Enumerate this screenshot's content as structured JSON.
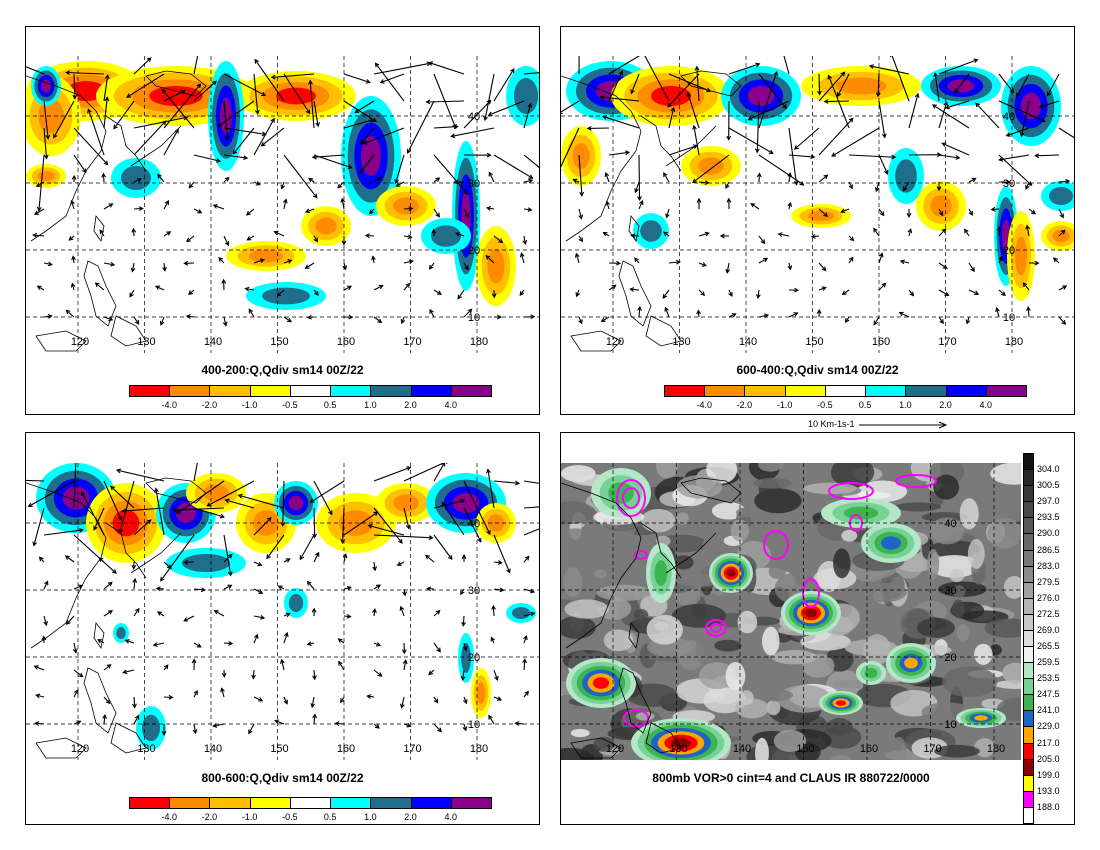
{
  "panels": [
    {
      "title": "400-200:Q,Qdiv sm14 00Z/22"
    },
    {
      "title": "600-400:Q,Qdiv sm14 00Z/22"
    },
    {
      "title": "800-600:Q,Qdiv sm14 00Z/22"
    },
    {
      "title": "800mb VOR>0 cint=4 and CLAUS IR 880722/0000"
    }
  ],
  "lon_labels": [
    "120",
    "130",
    "140",
    "150",
    "160",
    "170",
    "180"
  ],
  "lat_labels": [
    "40",
    "30",
    "20",
    "10"
  ],
  "qdiv_colorbar": {
    "labels": [
      "-4.0",
      "-2.0",
      "-1.0",
      "-0.5",
      "0.5",
      "1.0",
      "2.0",
      "4.0"
    ],
    "colors": [
      "#ff0000",
      "#ff8c00",
      "#ffbf00",
      "#ffff00",
      "#ffffff",
      "#00ffff",
      "#1e6e8c",
      "#0000ff",
      "#8b008b"
    ]
  },
  "vector_reference": "10 Km-1s-1",
  "ir_colorbar": {
    "labels": [
      "304.0",
      "300.5",
      "297.0",
      "293.5",
      "290.0",
      "286.5",
      "283.0",
      "279.5",
      "276.0",
      "272.5",
      "269.0",
      "265.5",
      "259.5",
      "253.5",
      "247.5",
      "241.0",
      "229.0",
      "217.0",
      "205.0",
      "199.0",
      "193.0",
      "188.0"
    ],
    "colors": [
      "#111111",
      "#282828",
      "#383838",
      "#484848",
      "#585858",
      "#686868",
      "#7a7a7a",
      "#8c8c8c",
      "#a0a0a0",
      "#b4b4b4",
      "#c8c8c8",
      "#dcdcdc",
      "#f0f0f0",
      "#b4e6c8",
      "#78d296",
      "#3cb450",
      "#1e64c8",
      "#ffa500",
      "#ff0000",
      "#8b0000",
      "#ffff00",
      "#ff00ff",
      "#ffffff"
    ]
  }
}
